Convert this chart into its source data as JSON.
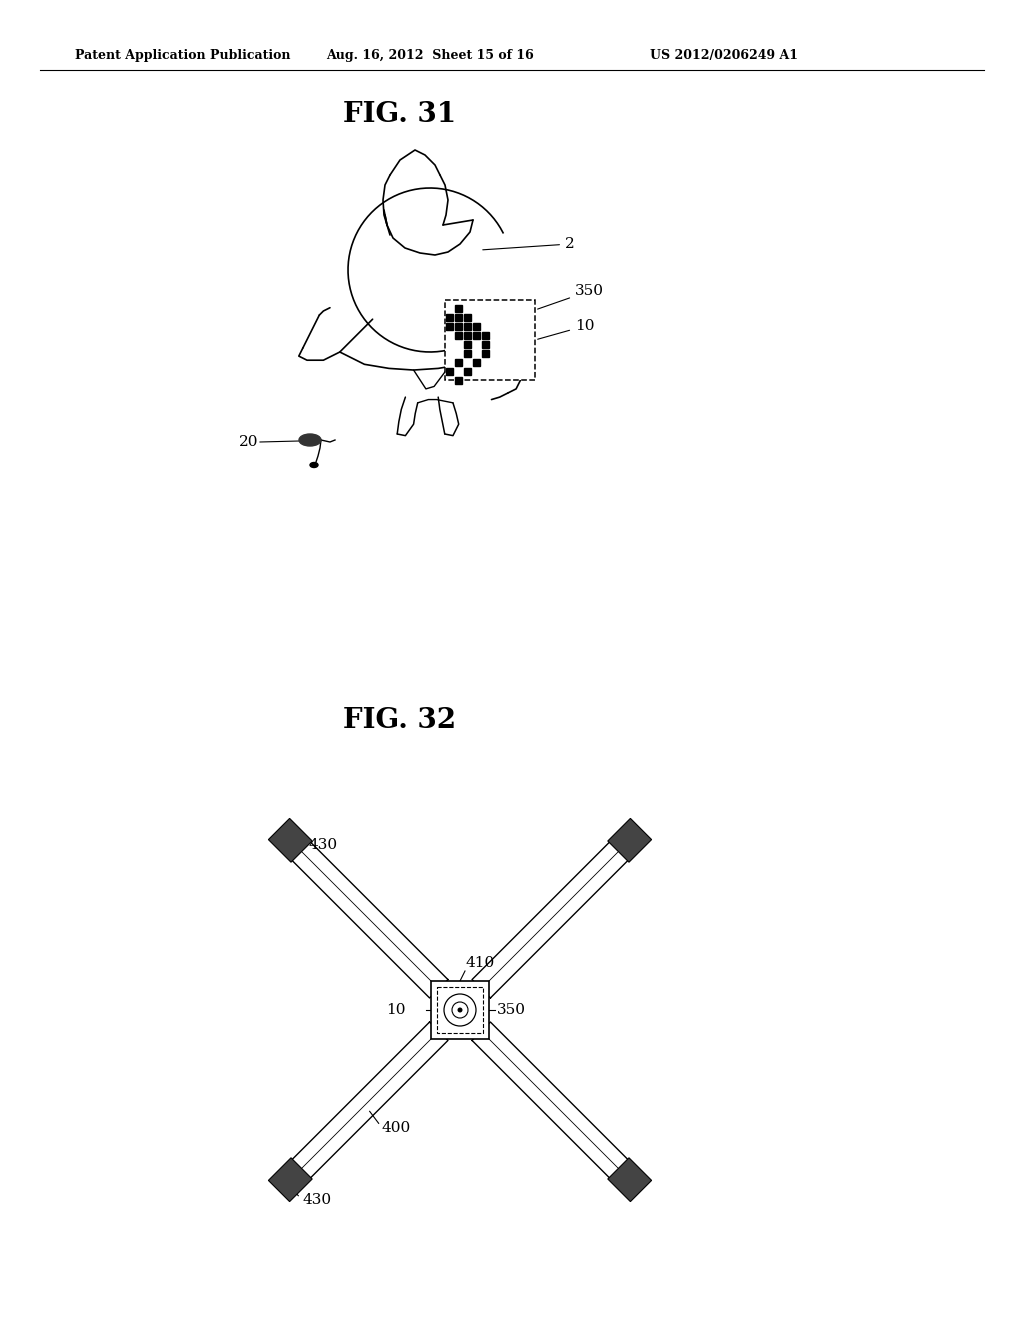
{
  "bg_color": "#ffffff",
  "header_left": "Patent Application Publication",
  "header_mid": "Aug. 16, 2012  Sheet 15 of 16",
  "header_right": "US 2012/0206249 A1",
  "fig31_title": "FIG. 31",
  "fig32_title": "FIG. 32",
  "line_color": "#000000"
}
